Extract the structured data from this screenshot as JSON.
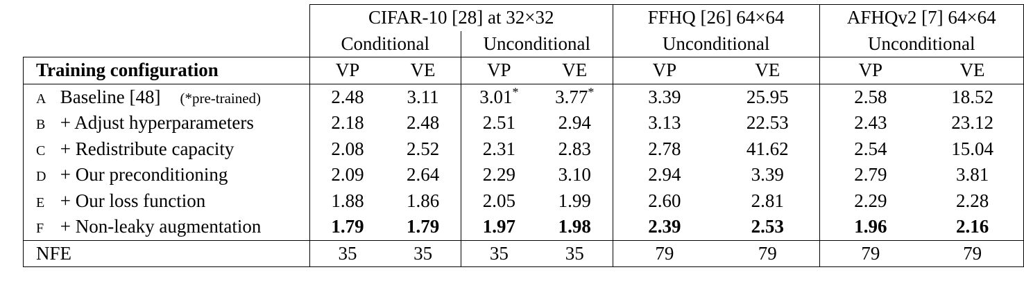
{
  "header": {
    "groups": [
      {
        "title": "CIFAR-10 [28] at 32×32",
        "sub": [
          "Conditional",
          "Unconditional"
        ]
      },
      {
        "title": "FFHQ [26] 64×64",
        "sub": [
          "Unconditional"
        ]
      },
      {
        "title": "AFHQv2 [7] 64×64",
        "sub": [
          "Unconditional"
        ]
      }
    ],
    "config_label": "Training configuration",
    "vp": "VP",
    "ve": "VE"
  },
  "rows": [
    {
      "tag": "A",
      "label": "Baseline [48]",
      "note": "(*pre-trained)",
      "values": [
        "2.48",
        "3.11",
        "3.01",
        "3.77",
        "3.39",
        "25.95",
        "2.58",
        "18.52"
      ],
      "marks": [
        "",
        "",
        "*",
        "*",
        "",
        "",
        "",
        ""
      ]
    },
    {
      "tag": "B",
      "label": "+ Adjust hyperparameters",
      "values": [
        "2.18",
        "2.48",
        "2.51",
        "2.94",
        "3.13",
        "22.53",
        "2.43",
        "23.12"
      ]
    },
    {
      "tag": "C",
      "label": "+ Redistribute capacity",
      "values": [
        "2.08",
        "2.52",
        "2.31",
        "2.83",
        "2.78",
        "41.62",
        "2.54",
        "15.04"
      ]
    },
    {
      "tag": "D",
      "label": "+ Our preconditioning",
      "values": [
        "2.09",
        "2.64",
        "2.29",
        "3.10",
        "2.94",
        "3.39",
        "2.79",
        "3.81"
      ]
    },
    {
      "tag": "E",
      "label": "+ Our loss function",
      "values": [
        "1.88",
        "1.86",
        "2.05",
        "1.99",
        "2.60",
        "2.81",
        "2.29",
        "2.28"
      ]
    },
    {
      "tag": "F",
      "label": "+ Non-leaky augmentation",
      "values": [
        "1.79",
        "1.79",
        "1.97",
        "1.98",
        "2.39",
        "2.53",
        "1.96",
        "2.16"
      ]
    }
  ],
  "nfe": {
    "label": "NFE",
    "values": [
      "35",
      "35",
      "35",
      "35",
      "79",
      "79",
      "79",
      "79"
    ]
  }
}
